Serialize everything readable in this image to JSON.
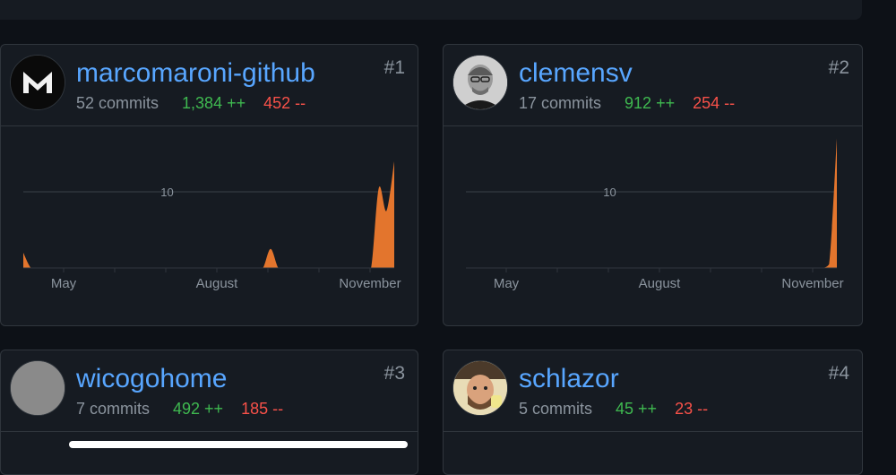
{
  "contributors": [
    {
      "username": "marcomaroni-github",
      "commits": "52 commits",
      "additions": "1,384 ++",
      "deletions": "452 --",
      "rank": "#1",
      "avatar_icon": "mm-logo-icon"
    },
    {
      "username": "clemensv",
      "commits": "17 commits",
      "additions": "912 ++",
      "deletions": "254 --",
      "rank": "#2",
      "avatar_icon": "person-photo"
    },
    {
      "username": "wicogohome",
      "commits": "7 commits",
      "additions": "492 ++",
      "deletions": "185 --",
      "rank": "#3",
      "avatar_icon": "placeholder-avatar"
    },
    {
      "username": "schlazor",
      "commits": "5 commits",
      "additions": "45 ++",
      "deletions": "23 --",
      "rank": "#4",
      "avatar_icon": "person-photo"
    }
  ],
  "chart_data": [
    {
      "type": "area",
      "series": [
        {
          "values": [
            2,
            0,
            0,
            0,
            0,
            0,
            0,
            0,
            0,
            0,
            0,
            0,
            0,
            0,
            0,
            0,
            0,
            0,
            0,
            0,
            0,
            0,
            0,
            0,
            0,
            0,
            0,
            0,
            0,
            0,
            0,
            0,
            2.5,
            0,
            0,
            0,
            0,
            0,
            0,
            0,
            0,
            0,
            0,
            0,
            0,
            0,
            10.5,
            7.5,
            14
          ]
        }
      ],
      "x_tick_labels": [
        "May",
        "August",
        "November"
      ],
      "gridline_label": "10",
      "color": "#e3752d"
    },
    {
      "type": "area",
      "series": [
        {
          "values": [
            0,
            0,
            0,
            0,
            0,
            0,
            0,
            0,
            0,
            0,
            0,
            0,
            0,
            0,
            0,
            0,
            0,
            0,
            0,
            0,
            0,
            0,
            0,
            0,
            0,
            0,
            0,
            0,
            0,
            0,
            0,
            0,
            0,
            0,
            0,
            0,
            0,
            0,
            0,
            0,
            0,
            0,
            0,
            0,
            0,
            0,
            0,
            0.5,
            17
          ]
        }
      ],
      "x_tick_labels": [
        "May",
        "August",
        "November"
      ],
      "gridline_label": "10",
      "color": "#e3752d"
    }
  ],
  "colors": {
    "background": "#0d1117",
    "card": "#161b22",
    "border": "#30363d",
    "link": "#58a6ff",
    "additions": "#3fb950",
    "deletions": "#f85149",
    "area_fill": "#e3752d"
  }
}
